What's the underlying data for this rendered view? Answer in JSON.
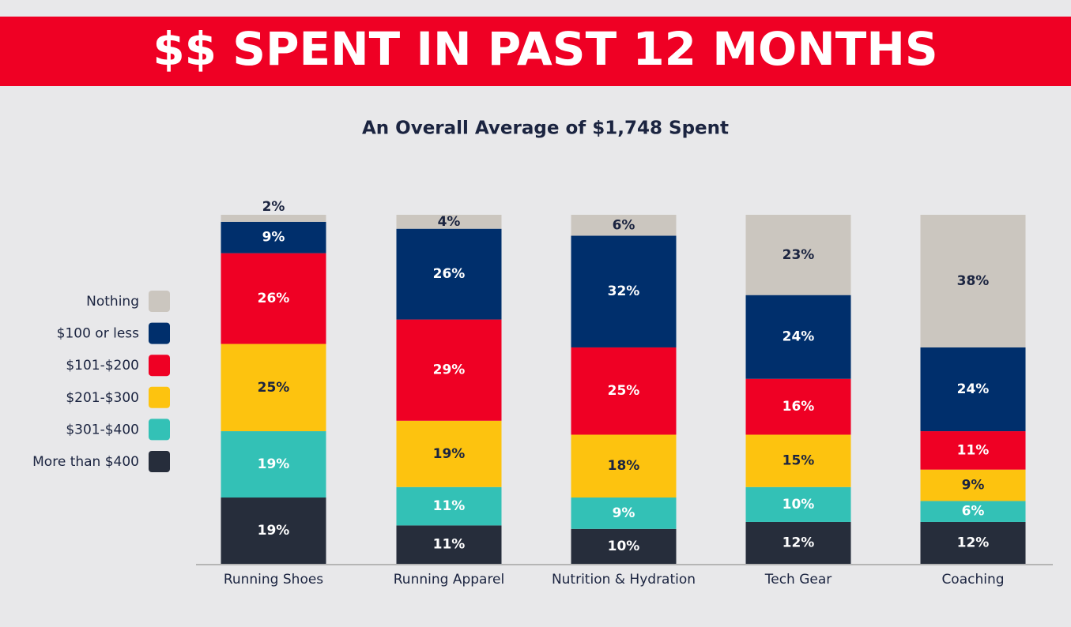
{
  "chart_data": {
    "type": "stacked_bar",
    "title": "$$ SPENT IN PAST 12 MONTHS",
    "subtitle": "An Overall Average of $1,748 Spent",
    "categories": [
      "Running Shoes",
      "Running Apparel",
      "Nutrition & Hydration",
      "Tech Gear",
      "Coaching"
    ],
    "ylim": [
      0,
      100
    ],
    "series": [
      {
        "name": "More than $400",
        "color": "#262d3b",
        "values": [
          19,
          11,
          10,
          12,
          12
        ],
        "value_labels": [
          "19%",
          "11%",
          "10%",
          "12%",
          "12%"
        ]
      },
      {
        "name": "$301-$400",
        "color": "#33c1b6",
        "values": [
          19,
          11,
          9,
          10,
          6
        ],
        "value_labels": [
          "19%",
          "11%",
          "9%",
          "10%",
          "6%"
        ]
      },
      {
        "name": "$201-$300",
        "color": "#fdc30f",
        "values": [
          25,
          19,
          18,
          15,
          9
        ],
        "value_labels": [
          "25%",
          "19%",
          "18%",
          "15%",
          "9%"
        ]
      },
      {
        "name": "$101-$200",
        "color": "#ef0024",
        "values": [
          26,
          29,
          25,
          16,
          11
        ],
        "value_labels": [
          "26%",
          "29%",
          "25%",
          "16%",
          "11%"
        ]
      },
      {
        "name": "$100 or less",
        "color": "#002f6c",
        "values": [
          9,
          26,
          32,
          24,
          24
        ],
        "value_labels": [
          "9%",
          "26%",
          "32%",
          "24%",
          "24%"
        ]
      },
      {
        "name": "Nothing",
        "color": "#cbc6bf",
        "values": [
          2,
          4,
          6,
          23,
          38
        ],
        "value_labels": [
          "2%",
          "4%",
          "6%",
          "23%",
          "38%"
        ]
      }
    ]
  }
}
